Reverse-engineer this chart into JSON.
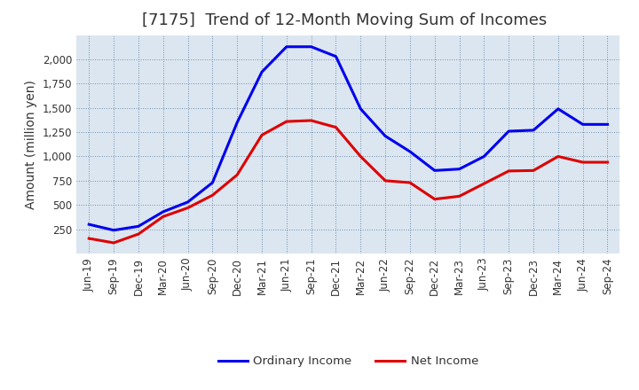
{
  "title": "[7175]  Trend of 12-Month Moving Sum of Incomes",
  "ylabel": "Amount (million yen)",
  "x_labels": [
    "Jun-19",
    "Sep-19",
    "Dec-19",
    "Mar-20",
    "Jun-20",
    "Sep-20",
    "Dec-20",
    "Mar-21",
    "Jun-21",
    "Sep-21",
    "Dec-21",
    "Mar-22",
    "Jun-22",
    "Sep-22",
    "Dec-22",
    "Mar-23",
    "Jun-23",
    "Sep-23",
    "Dec-23",
    "Mar-24",
    "Jun-24",
    "Sep-24"
  ],
  "ordinary_income": [
    300,
    240,
    280,
    430,
    530,
    730,
    1350,
    1870,
    2130,
    2130,
    2030,
    1490,
    1210,
    1050,
    855,
    870,
    1000,
    1260,
    1270,
    1490,
    1330,
    1330
  ],
  "net_income": [
    155,
    110,
    200,
    380,
    470,
    600,
    810,
    1220,
    1360,
    1370,
    1300,
    1000,
    750,
    730,
    560,
    590,
    720,
    850,
    855,
    1000,
    940,
    940
  ],
  "ordinary_income_color": "#0000ee",
  "net_income_color": "#dd0000",
  "background_color": "#ffffff",
  "plot_bg_color": "#dce6f0",
  "grid_color": "#7090b0",
  "ylim": [
    0,
    2250
  ],
  "yticks": [
    250,
    500,
    750,
    1000,
    1250,
    1500,
    1750,
    2000
  ],
  "legend_labels": [
    "Ordinary Income",
    "Net Income"
  ],
  "title_fontsize": 13,
  "axis_fontsize": 10,
  "tick_fontsize": 8.5,
  "line_width": 2.2
}
